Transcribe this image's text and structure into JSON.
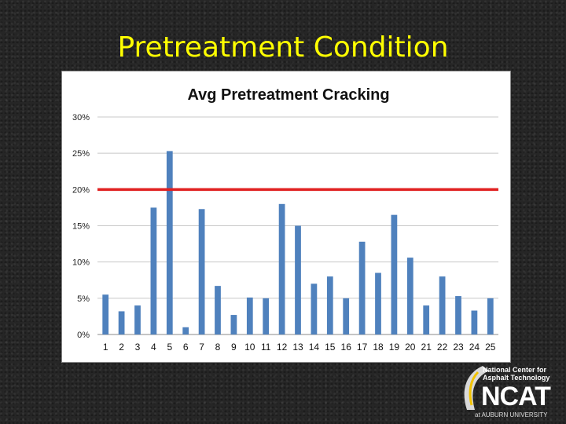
{
  "slide": {
    "title": "Pretreatment Condition"
  },
  "logo": {
    "line1": "National Center for",
    "line2": "Asphalt Technology",
    "mark": "NCAT",
    "sub": "at AUBURN UNIVERSITY"
  },
  "chart_data": {
    "type": "bar",
    "title": "Avg Pretreatment Cracking",
    "xlabel": "",
    "ylabel": "",
    "categories": [
      "1",
      "2",
      "3",
      "4",
      "5",
      "6",
      "7",
      "8",
      "9",
      "10",
      "11",
      "12",
      "13",
      "14",
      "15",
      "16",
      "17",
      "18",
      "19",
      "20",
      "21",
      "22",
      "23",
      "24",
      "25"
    ],
    "values": [
      5.5,
      3.2,
      4.0,
      17.5,
      25.3,
      1.0,
      17.3,
      6.7,
      2.7,
      5.1,
      5.0,
      18.0,
      15.0,
      7.0,
      8.0,
      5.0,
      12.8,
      8.5,
      16.5,
      10.6,
      4.0,
      8.0,
      5.3,
      3.3,
      5.0
    ],
    "yticks": [
      "0%",
      "5%",
      "10%",
      "15%",
      "20%",
      "25%",
      "30%"
    ],
    "ylim": [
      0,
      30
    ],
    "threshold": 20,
    "grid": true,
    "bar_color": "#4f81bd",
    "threshold_color": "#e02020"
  }
}
